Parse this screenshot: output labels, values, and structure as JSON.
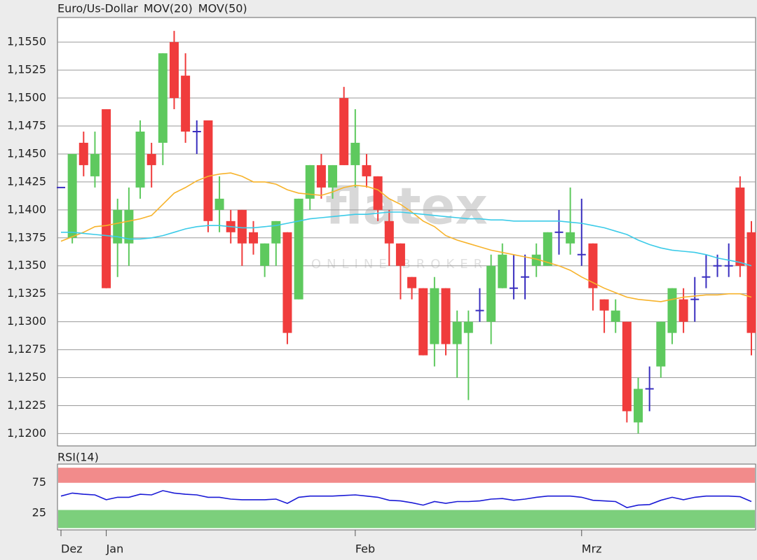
{
  "chart_data": [
    {
      "type": "candlestick",
      "name": "Euro/Us-Dollar",
      "name_color": "#f0502a",
      "watermark": "flatex",
      "watermark_subtitle": "ONLINE BROKER",
      "categories": [
        "Dez",
        null,
        null,
        null,
        "Jan",
        null,
        null,
        null,
        null,
        null,
        null,
        null,
        null,
        null,
        null,
        null,
        null,
        null,
        null,
        null,
        null,
        null,
        null,
        null,
        null,
        null,
        "Feb",
        null,
        null,
        null,
        null,
        null,
        null,
        null,
        null,
        null,
        null,
        null,
        null,
        null,
        null,
        null,
        null,
        null,
        null,
        null,
        "Mrz",
        null,
        null,
        null,
        null,
        null,
        null,
        null,
        null,
        null,
        null,
        null,
        null,
        null,
        null,
        null
      ],
      "open": [
        1.142,
        1.1375,
        1.146,
        1.143,
        1.149,
        1.137,
        1.137,
        1.142,
        1.145,
        1.146,
        1.155,
        1.152,
        1.147,
        1.148,
        1.14,
        1.139,
        1.14,
        1.138,
        1.135,
        1.137,
        1.138,
        1.132,
        1.141,
        1.144,
        1.142,
        1.15,
        1.144,
        1.144,
        1.143,
        1.139,
        1.137,
        1.134,
        1.133,
        1.128,
        1.133,
        1.128,
        1.129,
        1.131,
        1.13,
        1.133,
        1.133,
        1.134,
        1.135,
        1.135,
        1.138,
        1.137,
        1.136,
        1.137,
        1.132,
        1.13,
        1.13,
        1.121,
        1.124,
        1.126,
        1.129,
        1.132,
        1.132,
        1.134,
        1.135,
        1.135,
        1.142,
        1.138
      ],
      "high": [
        1.142,
        1.145,
        1.147,
        1.147,
        1.149,
        1.141,
        1.142,
        1.148,
        1.146,
        1.154,
        1.156,
        1.154,
        1.148,
        1.148,
        1.143,
        1.14,
        1.14,
        1.139,
        1.137,
        1.139,
        1.138,
        1.141,
        1.144,
        1.145,
        1.144,
        1.151,
        1.149,
        1.145,
        1.143,
        1.14,
        1.137,
        1.134,
        1.133,
        1.134,
        1.133,
        1.131,
        1.131,
        1.133,
        1.136,
        1.137,
        1.136,
        1.136,
        1.137,
        1.138,
        1.14,
        1.142,
        1.141,
        1.137,
        1.132,
        1.132,
        1.13,
        1.125,
        1.126,
        1.13,
        1.133,
        1.133,
        1.134,
        1.136,
        1.136,
        1.137,
        1.143,
        1.139
      ],
      "low": [
        1.142,
        1.137,
        1.143,
        1.142,
        1.133,
        1.134,
        1.135,
        1.141,
        1.142,
        1.144,
        1.149,
        1.146,
        1.145,
        1.138,
        1.138,
        1.137,
        1.135,
        1.136,
        1.134,
        1.135,
        1.128,
        1.132,
        1.14,
        1.141,
        1.141,
        1.144,
        1.142,
        1.142,
        1.139,
        1.135,
        1.132,
        1.132,
        1.127,
        1.126,
        1.127,
        1.125,
        1.123,
        1.13,
        1.128,
        1.133,
        1.132,
        1.132,
        1.134,
        1.135,
        1.136,
        1.136,
        1.135,
        1.131,
        1.129,
        1.129,
        1.121,
        1.12,
        1.122,
        1.125,
        1.128,
        1.129,
        1.13,
        1.133,
        1.134,
        1.134,
        1.134,
        1.127
      ],
      "close": [
        1.142,
        1.145,
        1.144,
        1.145,
        1.133,
        1.14,
        1.14,
        1.147,
        1.144,
        1.154,
        1.15,
        1.147,
        1.147,
        1.139,
        1.141,
        1.138,
        1.137,
        1.137,
        1.137,
        1.139,
        1.129,
        1.141,
        1.144,
        1.142,
        1.144,
        1.144,
        1.146,
        1.143,
        1.14,
        1.137,
        1.135,
        1.133,
        1.127,
        1.133,
        1.128,
        1.13,
        1.13,
        1.131,
        1.135,
        1.136,
        1.133,
        1.134,
        1.136,
        1.138,
        1.138,
        1.138,
        1.136,
        1.133,
        1.131,
        1.131,
        1.122,
        1.124,
        1.124,
        1.13,
        1.133,
        1.13,
        1.132,
        1.134,
        1.135,
        1.135,
        1.135,
        1.129
      ],
      "up_color": "#5ec95e",
      "down_color": "#f03c3c",
      "doji_color": "#3a2fbf",
      "series": [
        {
          "name": "MOV(20)",
          "color": "#f7b32b",
          "values": [
            1.1372,
            1.1376,
            1.138,
            1.1385,
            1.1386,
            1.1388,
            1.139,
            1.1392,
            1.1395,
            1.1405,
            1.1415,
            1.142,
            1.1426,
            1.143,
            1.1432,
            1.1433,
            1.143,
            1.1425,
            1.1425,
            1.1423,
            1.1418,
            1.1415,
            1.1414,
            1.1413,
            1.1416,
            1.142,
            1.1422,
            1.1421,
            1.1418,
            1.141,
            1.1405,
            1.1398,
            1.139,
            1.1385,
            1.1377,
            1.1373,
            1.137,
            1.1367,
            1.1364,
            1.1362,
            1.136,
            1.1358,
            1.1356,
            1.1353,
            1.135,
            1.1346,
            1.134,
            1.1335,
            1.133,
            1.1326,
            1.1322,
            1.132,
            1.1319,
            1.1318,
            1.132,
            1.1322,
            1.1323,
            1.1324,
            1.1324,
            1.1325,
            1.1325,
            1.1322
          ]
        },
        {
          "name": "MOV(50)",
          "color": "#3ccbe8",
          "values": [
            1.138,
            1.138,
            1.1379,
            1.1378,
            1.1377,
            1.1376,
            1.1374,
            1.1374,
            1.1375,
            1.1377,
            1.138,
            1.1383,
            1.1385,
            1.1386,
            1.1386,
            1.1385,
            1.1384,
            1.1384,
            1.1385,
            1.1386,
            1.1388,
            1.139,
            1.1392,
            1.1393,
            1.1394,
            1.1395,
            1.1396,
            1.1396,
            1.1397,
            1.1398,
            1.1398,
            1.1397,
            1.1396,
            1.1395,
            1.1394,
            1.1393,
            1.1392,
            1.1392,
            1.1391,
            1.1391,
            1.139,
            1.139,
            1.139,
            1.139,
            1.139,
            1.1389,
            1.1388,
            1.1386,
            1.1384,
            1.1381,
            1.1378,
            1.1373,
            1.1369,
            1.1366,
            1.1364,
            1.1363,
            1.1362,
            1.136,
            1.1357,
            1.1355,
            1.1353,
            1.135
          ]
        }
      ],
      "ylim": [
        1.1189,
        1.1572
      ],
      "yticks": [
        {
          "value": 1.12,
          "label": "1,1200"
        },
        {
          "value": 1.1225,
          "label": "1,1225"
        },
        {
          "value": 1.125,
          "label": "1,1250"
        },
        {
          "value": 1.1275,
          "label": "1,1275"
        },
        {
          "value": 1.13,
          "label": "1,1300"
        },
        {
          "value": 1.1325,
          "label": "1,1325"
        },
        {
          "value": 1.135,
          "label": "1,1350"
        },
        {
          "value": 1.1375,
          "label": "1,1375"
        },
        {
          "value": 1.14,
          "label": "1,1400"
        },
        {
          "value": 1.1425,
          "label": "1,1425"
        },
        {
          "value": 1.145,
          "label": "1,1450"
        },
        {
          "value": 1.1475,
          "label": "1,1475"
        },
        {
          "value": 1.15,
          "label": "1,1500"
        },
        {
          "value": 1.1525,
          "label": "1,1525"
        },
        {
          "value": 1.155,
          "label": "1,1550"
        }
      ],
      "grid": true
    },
    {
      "type": "line",
      "series": [
        {
          "name": "RSI(14)",
          "color": "#1a1ad6",
          "values": [
            53,
            58,
            56,
            55,
            47,
            51,
            51,
            56,
            55,
            62,
            58,
            56,
            55,
            51,
            51,
            48,
            47,
            47,
            47,
            48,
            41,
            51,
            53,
            53,
            53,
            54,
            55,
            53,
            51,
            46,
            45,
            42,
            38,
            44,
            41,
            44,
            44,
            45,
            48,
            49,
            46,
            48,
            51,
            53,
            53,
            53,
            51,
            46,
            45,
            44,
            34,
            38,
            39,
            46,
            51,
            47,
            51,
            53,
            53,
            53,
            52,
            44
          ]
        }
      ],
      "bands": [
        {
          "from": 75,
          "to": 100,
          "color": "#f28b8b"
        },
        {
          "from": 0,
          "to": 30,
          "color": "#7ccf7c"
        }
      ],
      "ylim": [
        -3,
        106
      ],
      "yticks": [
        25,
        75
      ]
    }
  ]
}
